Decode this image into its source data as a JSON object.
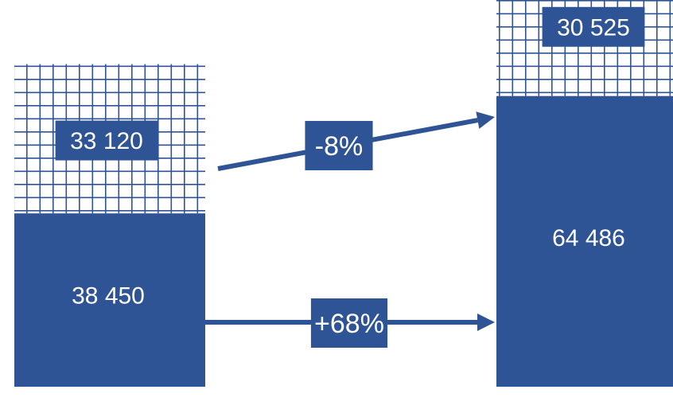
{
  "colors": {
    "solid": "#2f5496",
    "hatch": "#2f5496",
    "background": "#ffffff",
    "text": "#ffffff"
  },
  "chart_data": {
    "type": "bar",
    "stacked": true,
    "categories": [
      "",
      ""
    ],
    "series": [
      {
        "pattern": "solid",
        "values": [
          38450,
          64486
        ]
      },
      {
        "pattern": "grid",
        "values": [
          33120,
          30525
        ]
      }
    ],
    "value_labels": {
      "solid": [
        "38 450",
        "64 486"
      ],
      "grid": [
        "33 120",
        "30 525"
      ]
    },
    "changes": [
      {
        "series": "grid",
        "label": "-8%",
        "from": 33120,
        "to": 30525
      },
      {
        "series": "solid",
        "label": "+68%",
        "from": 38450,
        "to": 64486
      }
    ],
    "title": "",
    "xlabel": "",
    "ylabel": "",
    "grid": false,
    "legend": "none"
  }
}
